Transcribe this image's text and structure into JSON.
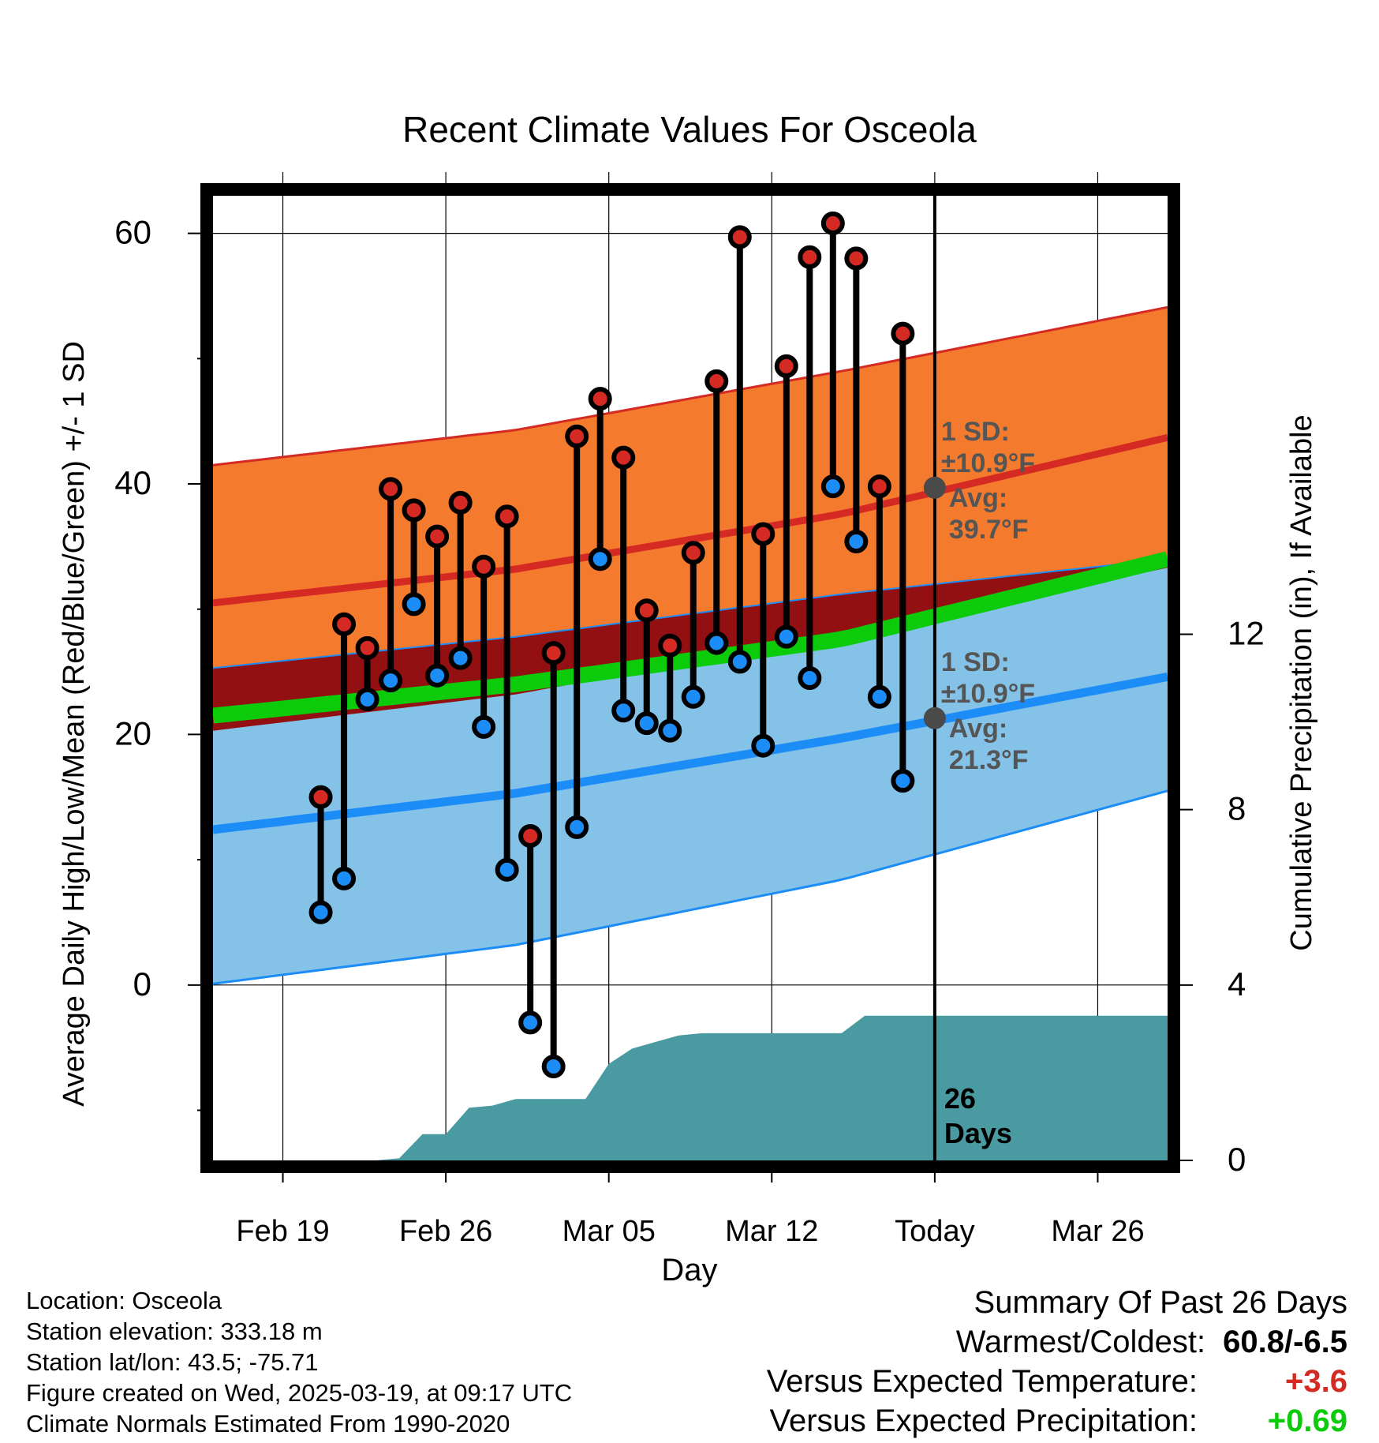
{
  "chart_data": {
    "type": "line",
    "title": "Recent Climate Values For Osceola",
    "xlabel": "Day",
    "ylabel": "Average Daily High/Low/Mean (Red/Blue/Green) +/- 1 SD",
    "y2label": "Cumulative Precipitation (in), If Available",
    "x_range": [
      "2025-02-16",
      "2025-03-29"
    ],
    "ylim": [
      -14,
      63
    ],
    "y2lim": [
      0,
      22
    ],
    "y_ticks": [
      0,
      20,
      40,
      60
    ],
    "y2_ticks": [
      0,
      4,
      8,
      12
    ],
    "x_ticks": [
      {
        "date": "2025-02-19",
        "label": "Feb 19"
      },
      {
        "date": "2025-02-26",
        "label": "Feb 26"
      },
      {
        "date": "2025-03-05",
        "label": "Mar 05"
      },
      {
        "date": "2025-03-12",
        "label": "Mar 12"
      },
      {
        "date": "2025-03-19",
        "label": "Today"
      },
      {
        "date": "2025-03-26",
        "label": "Mar 26"
      }
    ],
    "grid": true,
    "today": "2025-03-19",
    "days_label": [
      "26",
      "Days"
    ],
    "normals": {
      "x": [
        "2025-02-16",
        "2025-03-01",
        "2025-03-15",
        "2025-03-29"
      ],
      "high_mean": [
        30.5,
        33.2,
        37.6,
        43.7
      ],
      "high_upper": [
        41.5,
        44.3,
        49.0,
        54.1
      ],
      "low_mean": [
        12.4,
        15.3,
        19.7,
        24.6
      ],
      "low_lower": [
        0.1,
        3.2,
        8.4,
        15.5
      ],
      "low_upper": [
        25.3,
        27.8,
        31.2,
        34.0
      ],
      "avg_mean": [
        21.5,
        24.0,
        27.6,
        34.0
      ],
      "high_lower": [
        20.3,
        23.2,
        27.9,
        33.3
      ]
    },
    "observed": {
      "dates": [
        "2025-02-21",
        "2025-02-22",
        "2025-02-23",
        "2025-02-24",
        "2025-02-25",
        "2025-02-26",
        "2025-02-27",
        "2025-02-28",
        "2025-03-01",
        "2025-03-02",
        "2025-03-03",
        "2025-03-04",
        "2025-03-05",
        "2025-03-06",
        "2025-03-07",
        "2025-03-08",
        "2025-03-09",
        "2025-03-10",
        "2025-03-11",
        "2025-03-12",
        "2025-03-13",
        "2025-03-14",
        "2025-03-15",
        "2025-03-16",
        "2025-03-17",
        "2025-03-18"
      ],
      "high": [
        15,
        28.8,
        26.9,
        39.6,
        37.9,
        35.8,
        38.5,
        33.4,
        37.4,
        11.9,
        26.5,
        43.8,
        46.8,
        42.1,
        29.9,
        27.1,
        34.5,
        48.2,
        59.7,
        36.0,
        49.4,
        58.1,
        60.8,
        58.0,
        39.8,
        52.0
      ],
      "low": [
        5.8,
        8.5,
        22.8,
        24.3,
        30.4,
        24.7,
        26.1,
        20.6,
        9.2,
        -3.0,
        -6.5,
        12.6,
        34.0,
        21.9,
        20.9,
        20.3,
        23.0,
        27.3,
        25.8,
        19.1,
        27.8,
        24.5,
        39.8,
        35.4,
        23.0,
        16.3
      ]
    },
    "precip": {
      "dates": [
        "2025-02-16",
        "2025-02-23",
        "2025-02-24",
        "2025-02-25",
        "2025-02-26",
        "2025-02-27",
        "2025-02-28",
        "2025-03-01",
        "2025-03-02",
        "2025-03-03",
        "2025-03-04",
        "2025-03-05",
        "2025-03-06",
        "2025-03-07",
        "2025-03-08",
        "2025-03-09",
        "2025-03-10",
        "2025-03-11",
        "2025-03-12",
        "2025-03-13",
        "2025-03-14",
        "2025-03-15",
        "2025-03-16",
        "2025-03-17",
        "2025-03-18",
        "2025-03-29"
      ],
      "cumulative": [
        0,
        0,
        0.05,
        0.6,
        0.6,
        1.2,
        1.25,
        1.4,
        1.4,
        1.4,
        1.4,
        2.2,
        2.55,
        2.7,
        2.85,
        2.9,
        2.9,
        2.9,
        2.9,
        2.9,
        2.9,
        2.9,
        3.3,
        3.3,
        3.3,
        3.3
      ]
    },
    "annotations": {
      "high_sd": [
        "1 SD:",
        "±10.9°F"
      ],
      "high_avg": [
        "Avg:",
        "39.7°F"
      ],
      "high_avg_value": 39.7,
      "low_sd": [
        "1 SD:",
        "±10.9°F"
      ],
      "low_avg": [
        "Avg:",
        "21.3°F"
      ],
      "low_avg_value": 21.3
    },
    "colors": {
      "high_band": "#f47b2e",
      "high_line": "#d42a23",
      "low_band": "#85c2e8",
      "low_line": "#1c8df7",
      "overlap": "#920f12",
      "mean_line": "#0bcb0b",
      "precip": "#4a9aa1",
      "high_dot": "#d42a23",
      "low_dot": "#1c8df7",
      "annotation_text": "#555555"
    }
  },
  "meta": {
    "location": "Location: Osceola",
    "elevation": "Station elevation: 333.18 m",
    "latlon": "Station lat/lon: 43.5; -75.71",
    "created": "Figure created on Wed, 2025-03-19, at 09:17 UTC",
    "normals": "Climate Normals Estimated From 1990-2020"
  },
  "summary": {
    "title": "Summary Of Past 26 Days",
    "warm_cold_label": "Warmest/Coldest:",
    "warm_cold_value": "60.8/-6.5",
    "temp_label": "Versus Expected Temperature:",
    "temp_value": "+3.6",
    "precip_label": "Versus Expected Precipitation:",
    "precip_value": "+0.69",
    "temp_color": "#d42a23",
    "precip_color": "#0bcb0b"
  }
}
